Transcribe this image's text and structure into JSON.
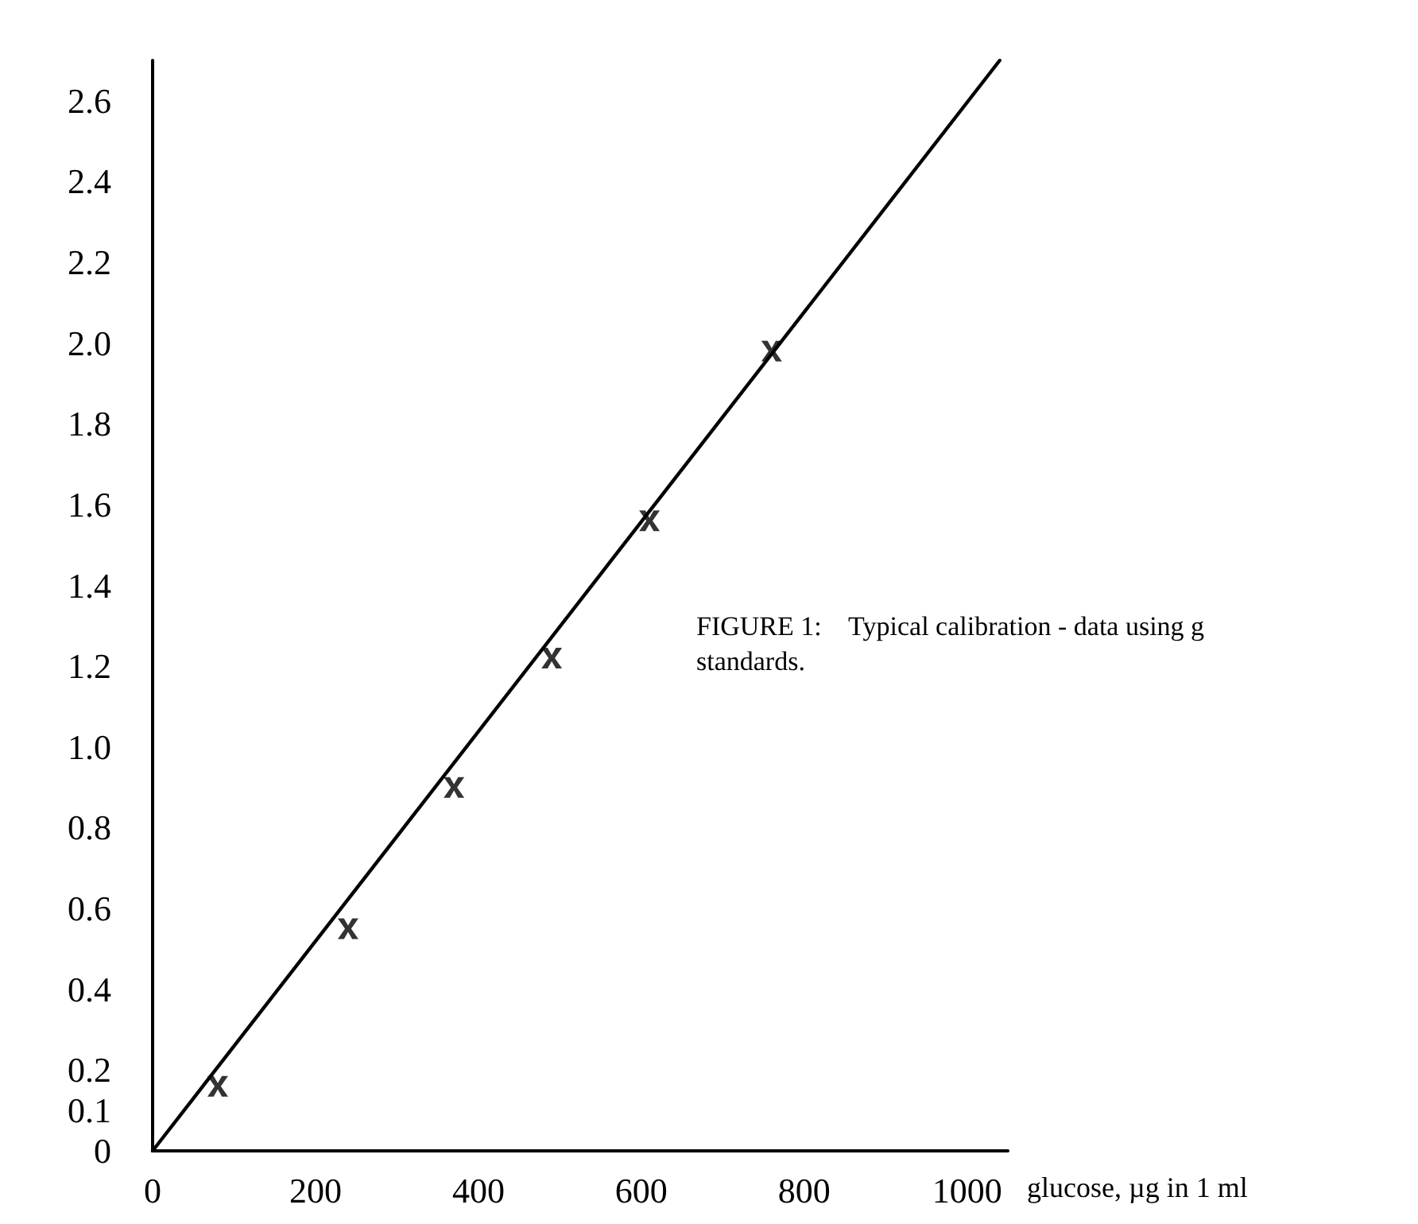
{
  "chart_data": {
    "type": "scatter",
    "xlabel": "glucose, µg in 1 ml",
    "annotations": [
      "FIGURE 1:    Typical calibration - data using g\nstandards."
    ],
    "xlim": [
      0,
      1050
    ],
    "xticks": [
      0,
      200,
      400,
      600,
      800,
      1000
    ],
    "ylim": [
      0,
      2.7
    ],
    "yticks": [
      0,
      0.1,
      0.2,
      0.4,
      0.6,
      0.8,
      {
        "value": 1,
        "label": "1.0"
      },
      1.2,
      1.4,
      1.6,
      1.8,
      {
        "value": 2,
        "label": "2.0"
      },
      2.2,
      2.4,
      2.6
    ],
    "grid": false,
    "marker": "cross",
    "series": [
      {
        "color": "#000000",
        "x": [
          80,
          240,
          370,
          490,
          610,
          760
        ],
        "values": [
          0.16,
          0.55,
          0.9,
          1.22,
          1.56,
          1.98
        ]
      },
      {
        "type": "line",
        "color": "#000000",
        "marker": "none",
        "line_style": "solid",
        "x": [
          0,
          1040
        ],
        "values": [
          0,
          2.7
        ]
      }
    ]
  }
}
